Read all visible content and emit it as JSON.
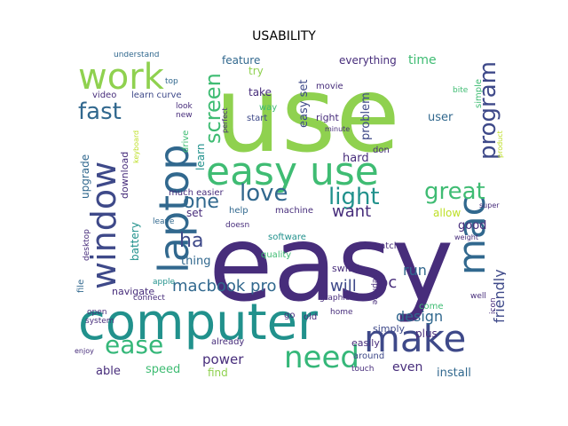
{
  "title": "USABILITY",
  "colors": {
    "lime": "#8fd14f",
    "green": "#3fbc73",
    "teal": "#21918c",
    "blue": "#31688e",
    "purple": "#3e4989",
    "indigo": "#472d7b",
    "dark": "#440154",
    "sea": "#35b779",
    "yellow": "#bddf26"
  },
  "words": {
    "use": "use",
    "easy_big": "easy",
    "computer": "computer",
    "easy_use": "easy use",
    "laptop": "laptop",
    "window": "window",
    "work": "work",
    "make": "make",
    "need": "need",
    "mac": "mac",
    "ease": "ease",
    "program": "program",
    "great": "great",
    "love": "love",
    "light": "light",
    "fast": "fast",
    "screen": "screen",
    "one": "one",
    "ha": "ha",
    "macbook_pro": "macbook pro",
    "design": "design",
    "friendly": "friendly",
    "will": "will",
    "pc": "pc",
    "want": "want",
    "run": "run",
    "power": "power",
    "speed": "speed",
    "able": "able",
    "install": "install",
    "even": "even",
    "feature": "feature",
    "everything": "everything",
    "time": "time",
    "easy_set": "easy set",
    "user": "user",
    "problem": "problem",
    "hard": "hard",
    "learn": "learn",
    "upgrade": "upgrade",
    "download": "download",
    "battery": "battery",
    "set": "set",
    "thing": "thing",
    "navigate": "navigate",
    "good": "good",
    "allow": "allow",
    "simply": "simply",
    "plus": "plus",
    "find": "find",
    "easily": "easily",
    "around": "around",
    "take": "take",
    "try": "try",
    "video": "video",
    "learn_curve": "learn curve",
    "understand": "understand",
    "quality": "quality",
    "software": "software",
    "help": "help",
    "machine": "machine",
    "much_easier": "much easier",
    "switch": "switch",
    "movie": "movie",
    "right": "right",
    "start": "start",
    "way": "way",
    "simple": "simple",
    "drive": "drive",
    "already": "already",
    "old": "old",
    "go": "go",
    "come": "come",
    "replace": "replace",
    "watch": "watch",
    "file": "file",
    "desktop": "desktop",
    "open": "open",
    "system": "system",
    "doesn": "doesn",
    "leave": "leave",
    "graphic": "graphic",
    "home": "home",
    "don": "don",
    "icon": "icon",
    "product": "product",
    "connect": "connect",
    "apple": "apple",
    "top": "top",
    "look": "look",
    "new": "new",
    "perfect": "perfect",
    "minute": "minute",
    "enjoy": "enjoy",
    "keyboard": "keyboard",
    "well": "well",
    "touch": "touch",
    "super": "super",
    "weight": "weight",
    "bite": "bite"
  }
}
